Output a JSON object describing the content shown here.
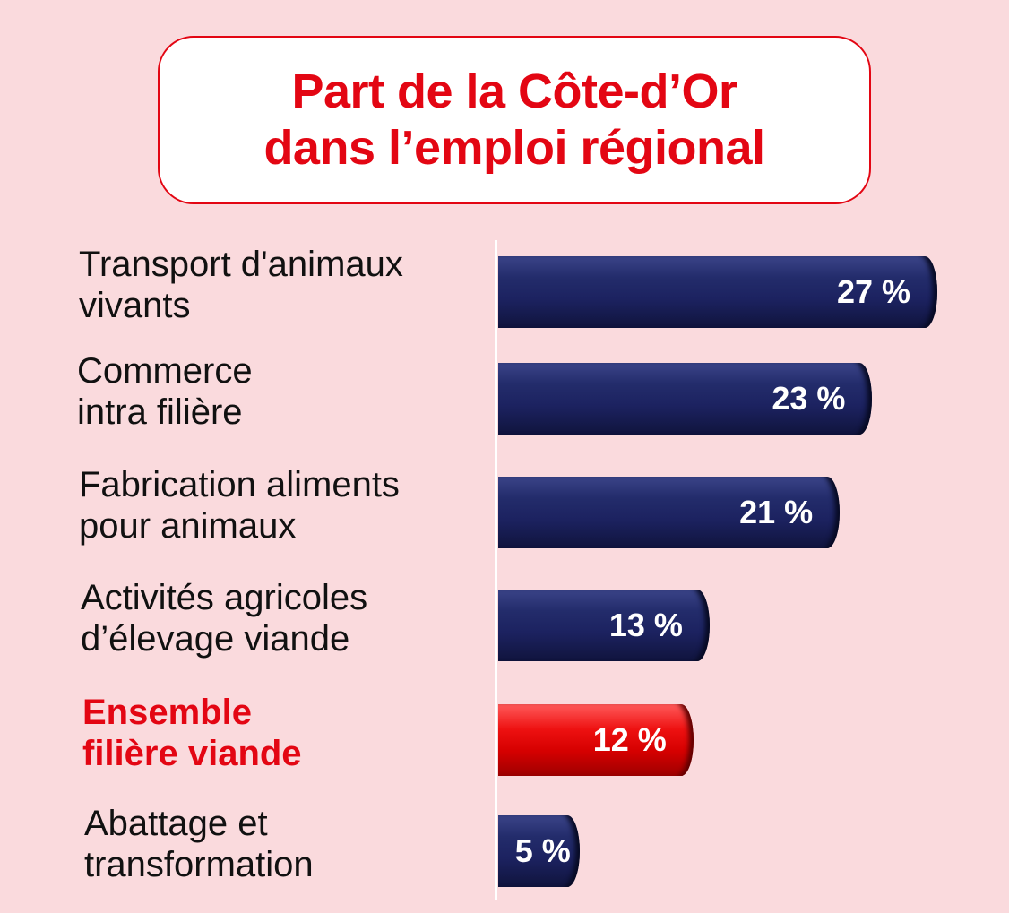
{
  "chart_data": {
    "type": "bar",
    "orientation": "horizontal",
    "title": "Part de la Côte-d’Or\ndans l’emploi régional",
    "categories": [
      "Transport d'animaux\nvivants",
      "Commerce\nintra filière",
      "Fabrication aliments\npour animaux",
      "Activités agricoles\nd’élevage viande",
      "Ensemble\nfilière viande",
      "Abattage et\ntransformation"
    ],
    "values": [
      27,
      23,
      21,
      13,
      12,
      5
    ],
    "value_labels": [
      "27 %",
      "23 %",
      "21 %",
      "13 %",
      "12 %",
      "5 %"
    ],
    "highlight_index": 4,
    "unit": "%",
    "grid": false
  },
  "colors": {
    "background": "#fadadd",
    "bar": "#1f2766",
    "highlight_bar": "#e30613",
    "title": "#e30613"
  }
}
